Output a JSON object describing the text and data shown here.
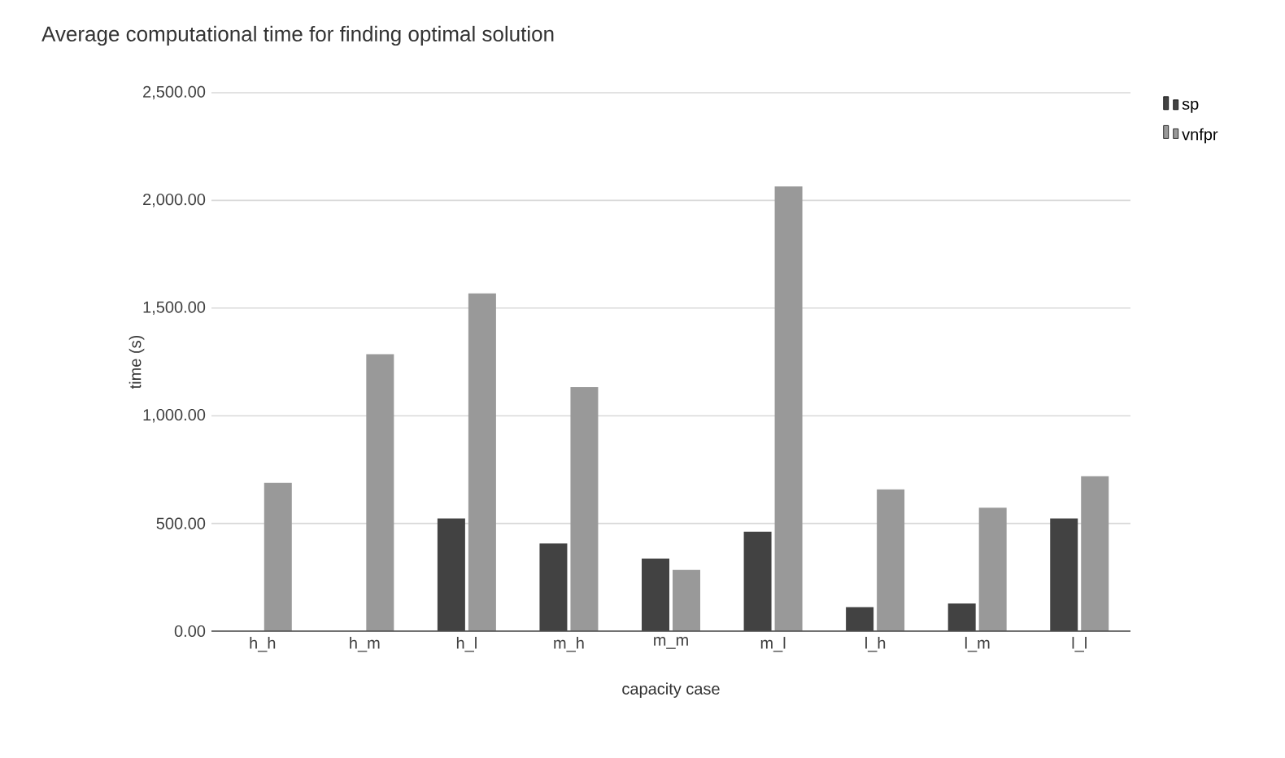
{
  "chart_data": {
    "type": "bar",
    "title": "Average computational time for finding optimal solution",
    "xlabel": "capacity case",
    "ylabel": "time (s)",
    "categories": [
      "h_h",
      "h_m",
      "h_l",
      "m_h",
      "m_m",
      "m_l",
      "l_h",
      "l_m",
      "l_l"
    ],
    "series": [
      {
        "name": "sp",
        "color": "#424242",
        "values": [
          null,
          null,
          523,
          407,
          337,
          462,
          111,
          128,
          523
        ]
      },
      {
        "name": "vnfpr",
        "color": "#999999",
        "values": [
          688,
          1286,
          1568,
          1133,
          284,
          2065,
          658,
          573,
          719
        ]
      }
    ],
    "ylim": [
      0,
      2500
    ],
    "yticks": [
      {
        "value": 0,
        "label": "0.00"
      },
      {
        "value": 500,
        "label": "500.00"
      },
      {
        "value": 1000,
        "label": "1,000.00"
      },
      {
        "value": 1500,
        "label": "1,500.00"
      },
      {
        "value": 2000,
        "label": "2,000.00"
      },
      {
        "value": 2500,
        "label": "2,500.00"
      }
    ],
    "grid": "y",
    "legend": "top right"
  }
}
